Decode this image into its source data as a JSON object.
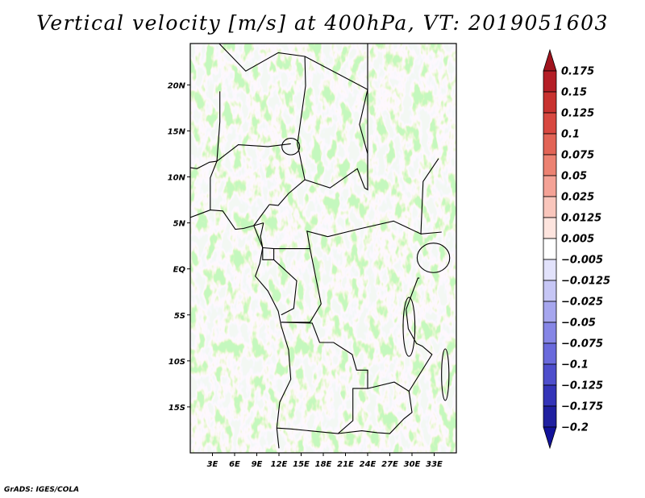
{
  "title": "Vertical velocity [m/s] at 400hPa, VT: 2019051603",
  "credit": "GrADS: IGES/COLA",
  "map": {
    "variable": "Vertical velocity",
    "units": "m/s",
    "level": "400hPa",
    "valid_time": "2019051603",
    "lon_range": [
      0,
      36
    ],
    "lat_range": [
      -20,
      24.5
    ],
    "lon_ticks": [
      {
        "value": 3,
        "label": "3E"
      },
      {
        "value": 6,
        "label": "6E"
      },
      {
        "value": 9,
        "label": "9E"
      },
      {
        "value": 12,
        "label": "12E"
      },
      {
        "value": 15,
        "label": "15E"
      },
      {
        "value": 18,
        "label": "18E"
      },
      {
        "value": 21,
        "label": "21E"
      },
      {
        "value": 24,
        "label": "24E"
      },
      {
        "value": 27,
        "label": "27E"
      },
      {
        "value": 30,
        "label": "30E"
      },
      {
        "value": 33,
        "label": "33E"
      }
    ],
    "lat_ticks": [
      {
        "value": 20,
        "label": "20N"
      },
      {
        "value": 15,
        "label": "15N"
      },
      {
        "value": 10,
        "label": "10N"
      },
      {
        "value": 5,
        "label": "5N"
      },
      {
        "value": 0,
        "label": "EQ"
      },
      {
        "value": -5,
        "label": "5S"
      },
      {
        "value": -10,
        "label": "10S"
      },
      {
        "value": -15,
        "label": "15S"
      }
    ]
  },
  "colorbar": {
    "levels": [
      "0.175",
      "0.15",
      "0.125",
      "0.1",
      "0.075",
      "0.05",
      "0.025",
      "0.0125",
      "0.005",
      "−0.005",
      "−0.0125",
      "−0.025",
      "−0.05",
      "−0.075",
      "−0.1",
      "−0.125",
      "−0.175",
      "−0.2"
    ],
    "colors": [
      "#a0141e",
      "#b41e26",
      "#c8322f",
      "#d84840",
      "#e26456",
      "#ec8272",
      "#f4a296",
      "#f9c6bc",
      "#fde4de",
      "#ffffff",
      "#e2e2fb",
      "#c6c6f5",
      "#a6a6ee",
      "#8686e6",
      "#6a6adc",
      "#4e4ecc",
      "#3434b8",
      "#2020a0",
      "#12129a"
    ]
  }
}
